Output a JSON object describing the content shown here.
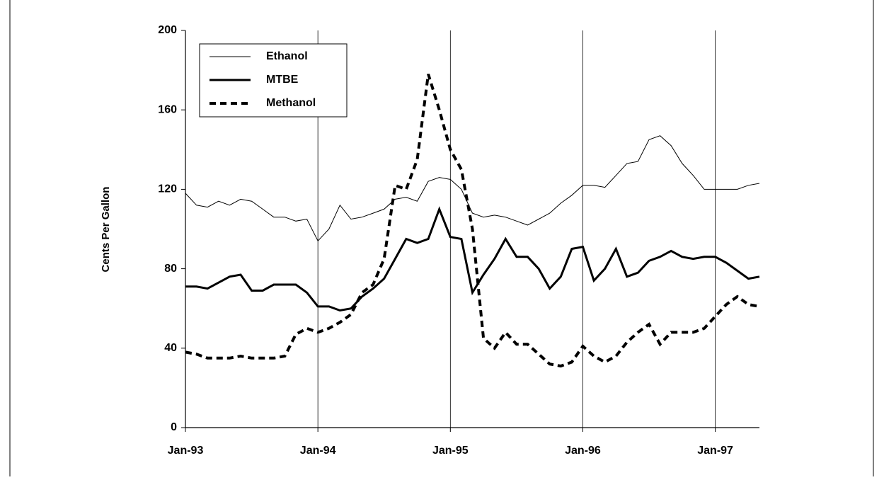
{
  "chart_data": {
    "type": "line",
    "ylabel": "Cents Per Gallon",
    "xlim": [
      0,
      52
    ],
    "ylim": [
      0,
      200
    ],
    "xticks": [
      {
        "value": 0,
        "label": "Jan-93"
      },
      {
        "value": 12,
        "label": "Jan-94"
      },
      {
        "value": 24,
        "label": "Jan-95"
      },
      {
        "value": 36,
        "label": "Jan-96"
      },
      {
        "value": 48,
        "label": "Jan-97"
      }
    ],
    "yticks": [
      0,
      40,
      80,
      120,
      160,
      200
    ],
    "grid": "x",
    "legend": "upper left",
    "x": [
      0,
      1,
      2,
      3,
      4,
      5,
      6,
      7,
      8,
      9,
      10,
      11,
      12,
      13,
      14,
      15,
      16,
      17,
      18,
      19,
      20,
      21,
      22,
      23,
      24,
      25,
      26,
      27,
      28,
      29,
      30,
      31,
      32,
      33,
      34,
      35,
      36,
      37,
      38,
      39,
      40,
      41,
      42,
      43,
      44,
      45,
      46,
      47,
      48,
      49,
      50,
      51,
      52
    ],
    "series": [
      {
        "name": "Ethanol",
        "color": "#000000",
        "line_style": "thin",
        "values": [
          118,
          112,
          111,
          114,
          112,
          115,
          114,
          110,
          106,
          106,
          104,
          105,
          94,
          100,
          112,
          105,
          106,
          108,
          110,
          115,
          116,
          114,
          124,
          126,
          125,
          120,
          108,
          106,
          107,
          106,
          104,
          102,
          105,
          108,
          113,
          117,
          122,
          122,
          121,
          127,
          133,
          134,
          145,
          147,
          142,
          133,
          127,
          120,
          120,
          120,
          120,
          122,
          123
        ]
      },
      {
        "name": "MTBE",
        "color": "#000000",
        "line_style": "thick",
        "values": [
          71,
          71,
          70,
          73,
          76,
          77,
          69,
          69,
          72,
          72,
          72,
          68,
          61,
          61,
          59,
          60,
          66,
          70,
          75,
          85,
          95,
          93,
          95,
          110,
          96,
          95,
          68,
          77,
          85,
          95,
          86,
          86,
          80,
          70,
          76,
          90,
          91,
          74,
          80,
          90,
          76,
          78,
          84,
          86,
          89,
          86,
          85,
          86,
          86,
          83,
          79,
          75,
          76
        ]
      },
      {
        "name": "Methanol",
        "color": "#000000",
        "line_style": "dashed",
        "values": [
          38,
          37,
          35,
          35,
          35,
          36,
          35,
          35,
          35,
          36,
          47,
          50,
          48,
          50,
          53,
          57,
          68,
          72,
          85,
          122,
          120,
          135,
          178,
          160,
          140,
          130,
          100,
          45,
          40,
          48,
          42,
          42,
          37,
          32,
          31,
          33,
          41,
          36,
          33,
          36,
          43,
          48,
          52,
          42,
          48,
          48,
          48,
          50,
          56,
          62,
          66,
          62,
          61
        ]
      }
    ]
  }
}
